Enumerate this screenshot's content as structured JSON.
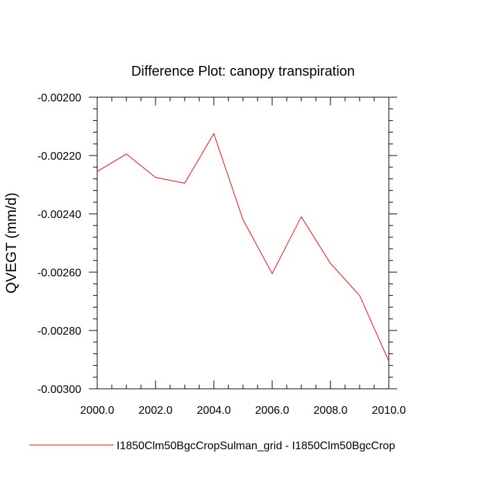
{
  "chart_data": {
    "type": "line",
    "title": "Difference Plot: canopy transpiration",
    "xlabel": "",
    "ylabel": "QVEGT  (mm/d)",
    "x": [
      2000,
      2001,
      2002,
      2003,
      2004,
      2005,
      2006,
      2007,
      2008,
      2009,
      2010
    ],
    "series": [
      {
        "name": "I1850Clm50BgcCropSulman_grid - I1850Clm50BgcCrop",
        "color": "#ff0000",
        "values": [
          -0.002255,
          -0.002195,
          -0.002275,
          -0.002295,
          -0.002125,
          -0.00242,
          -0.002605,
          -0.00241,
          -0.00257,
          -0.00268,
          -0.002905
        ]
      }
    ],
    "xlim": [
      2000,
      2010
    ],
    "ylim": [
      -0.003,
      -0.002
    ],
    "xticks": [
      "2000.0",
      "2002.0",
      "2004.0",
      "2006.0",
      "2008.0",
      "2010.0"
    ],
    "xtick_values": [
      2000,
      2002,
      2004,
      2006,
      2008,
      2010
    ],
    "yticks": [
      "-0.00200",
      "-0.00220",
      "-0.00240",
      "-0.00260",
      "-0.00280",
      "-0.00300"
    ],
    "ytick_values": [
      -0.002,
      -0.0022,
      -0.0024,
      -0.0026,
      -0.0028,
      -0.003
    ],
    "grid": false,
    "legend_position": "bottom"
  }
}
